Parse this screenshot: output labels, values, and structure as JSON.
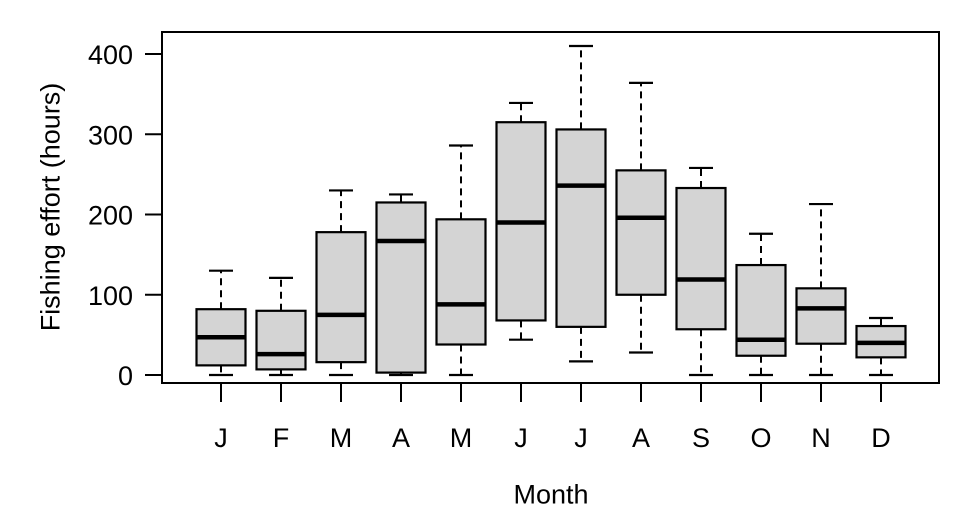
{
  "chart_data": {
    "type": "boxplot",
    "title": "",
    "xlabel": "Month",
    "ylabel": "Fishing effort (hours)",
    "categories": [
      "J",
      "F",
      "M",
      "A",
      "M",
      "J",
      "J",
      "A",
      "S",
      "O",
      "N",
      "D"
    ],
    "yticks": [
      0,
      100,
      200,
      300,
      400
    ],
    "ylim": [
      -10,
      427
    ],
    "grid": false,
    "legend": "none",
    "whisker_style": "dashed",
    "series": [
      {
        "month": "J",
        "min": 0,
        "q1": 12,
        "median": 47,
        "q3": 82,
        "max": 130
      },
      {
        "month": "F",
        "min": 0,
        "q1": 7,
        "median": 26,
        "q3": 80,
        "max": 121
      },
      {
        "month": "M",
        "min": 0,
        "q1": 16,
        "median": 75,
        "q3": 178,
        "max": 230
      },
      {
        "month": "A",
        "min": 0,
        "q1": 3,
        "median": 167,
        "q3": 215,
        "max": 225
      },
      {
        "month": "M",
        "min": 0,
        "q1": 38,
        "median": 88,
        "q3": 194,
        "max": 286
      },
      {
        "month": "J",
        "min": 44,
        "q1": 68,
        "median": 190,
        "q3": 315,
        "max": 339
      },
      {
        "month": "J",
        "min": 17,
        "q1": 60,
        "median": 236,
        "q3": 306,
        "max": 410
      },
      {
        "month": "A",
        "min": 28,
        "q1": 100,
        "median": 196,
        "q3": 255,
        "max": 364
      },
      {
        "month": "S",
        "min": 0,
        "q1": 57,
        "median": 119,
        "q3": 233,
        "max": 258
      },
      {
        "month": "O",
        "min": 0,
        "q1": 24,
        "median": 44,
        "q3": 137,
        "max": 176
      },
      {
        "month": "N",
        "min": 0,
        "q1": 39,
        "median": 83,
        "q3": 108,
        "max": 213
      },
      {
        "month": "D",
        "min": 0,
        "q1": 22,
        "median": 40,
        "q3": 61,
        "max": 71
      }
    ],
    "colors": {
      "box_fill": "#d4d4d4",
      "box_border": "#000000",
      "median_line": "#000000",
      "axis": "#000000",
      "text": "#000000",
      "background": "#ffffff"
    }
  }
}
